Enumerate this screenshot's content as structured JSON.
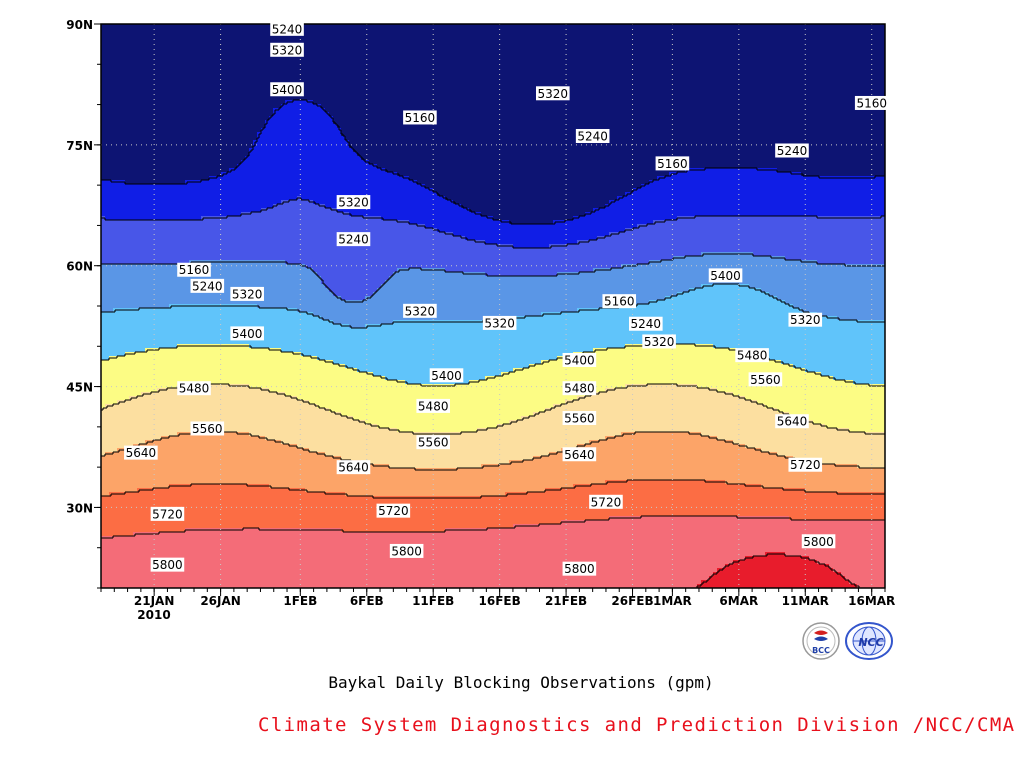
{
  "chart_data": {
    "type": "contour",
    "title": "Baykal Daily Blocking Observations (gpm)",
    "x_axis": {
      "ticks": [
        "21JAN",
        "26JAN",
        "1FEB",
        "6FEB",
        "11FEB",
        "16FEB",
        "21FEB",
        "26FEB",
        "1MAR",
        "6MAR",
        "11MAR",
        "16MAR"
      ],
      "year_label": "2010",
      "range": [
        "2010-01-17",
        "2010-03-17"
      ]
    },
    "y_axis": {
      "ticks": [
        "30N",
        "45N",
        "60N",
        "75N",
        "90N"
      ],
      "tick_values": [
        30,
        45,
        60,
        75,
        90
      ],
      "range": [
        20,
        90
      ]
    },
    "contour_levels": [
      5160,
      5240,
      5320,
      5400,
      5480,
      5560,
      5640,
      5720,
      5800,
      5880
    ],
    "fill_colors": [
      "#0d1473",
      "#101ee6",
      "#4856e8",
      "#5a96e6",
      "#60c4fa",
      "#fcfc84",
      "#fcdfa0",
      "#fca468",
      "#fc6d44",
      "#f46c78",
      "#e81c2c"
    ],
    "contour_labels": [
      {
        "text": "5240",
        "x": "2010-01-31",
        "lat": 89.4
      },
      {
        "text": "5320",
        "x": "2010-01-31",
        "lat": 86.8
      },
      {
        "text": "5400",
        "x": "2010-01-31",
        "lat": 81.9
      },
      {
        "text": "5320",
        "x": "2010-02-05",
        "lat": 67.9
      },
      {
        "text": "5240",
        "x": "2010-02-05",
        "lat": 63.3
      },
      {
        "text": "5160",
        "x": "2010-02-10",
        "lat": 78.4
      },
      {
        "text": "5320",
        "x": "2010-02-20",
        "lat": 81.4
      },
      {
        "text": "5240",
        "x": "2010-02-23",
        "lat": 76.1
      },
      {
        "text": "5160",
        "x": "2010-02-29",
        "lat": 72.7
      },
      {
        "text": "5240",
        "x": "2010-03-10",
        "lat": 74.3
      },
      {
        "text": "5160",
        "x": "2010-03-16",
        "lat": 80.2
      },
      {
        "text": "5160",
        "x": "2010-01-24",
        "lat": 59.5
      },
      {
        "text": "5240",
        "x": "2010-01-25",
        "lat": 57.5
      },
      {
        "text": "5320",
        "x": "2010-01-28",
        "lat": 56.5
      },
      {
        "text": "5400",
        "x": "2010-01-28",
        "lat": 51.6
      },
      {
        "text": "5320",
        "x": "2010-02-10",
        "lat": 54.4
      },
      {
        "text": "5320",
        "x": "2010-02-16",
        "lat": 52.9
      },
      {
        "text": "5160",
        "x": "2010-02-25",
        "lat": 55.6
      },
      {
        "text": "5240",
        "x": "2010-02-27",
        "lat": 52.8
      },
      {
        "text": "5320",
        "x": "2010-02-28",
        "lat": 50.6
      },
      {
        "text": "5400",
        "x": "2010-03-05",
        "lat": 58.8
      },
      {
        "text": "5320",
        "x": "2010-03-11",
        "lat": 53.3
      },
      {
        "text": "5480",
        "x": "2010-03-07",
        "lat": 48.9
      },
      {
        "text": "5560",
        "x": "2010-03-08",
        "lat": 45.9
      },
      {
        "text": "5400",
        "x": "2010-02-12",
        "lat": 46.4
      },
      {
        "text": "5400",
        "x": "2010-02-22",
        "lat": 48.3
      },
      {
        "text": "5480",
        "x": "2010-01-24",
        "lat": 44.8
      },
      {
        "text": "5480",
        "x": "2010-02-11",
        "lat": 42.6
      },
      {
        "text": "5480",
        "x": "2010-02-22",
        "lat": 44.8
      },
      {
        "text": "5560",
        "x": "2010-01-25",
        "lat": 39.8
      },
      {
        "text": "5560",
        "x": "2010-02-11",
        "lat": 38.1
      },
      {
        "text": "5560",
        "x": "2010-02-22",
        "lat": 41.1
      },
      {
        "text": "5640",
        "x": "2010-03-10",
        "lat": 40.7
      },
      {
        "text": "5640",
        "x": "2010-01-20",
        "lat": 36.8
      },
      {
        "text": "5640",
        "x": "2010-02-05",
        "lat": 35.0
      },
      {
        "text": "5640",
        "x": "2010-02-22",
        "lat": 36.6
      },
      {
        "text": "5720",
        "x": "2010-03-11",
        "lat": 35.3
      },
      {
        "text": "5720",
        "x": "2010-01-22",
        "lat": 29.2
      },
      {
        "text": "5720",
        "x": "2010-02-08",
        "lat": 29.6
      },
      {
        "text": "5720",
        "x": "2010-02-24",
        "lat": 30.7
      },
      {
        "text": "5800",
        "x": "2010-03-12",
        "lat": 25.8
      },
      {
        "text": "5800",
        "x": "2010-01-22",
        "lat": 22.9
      },
      {
        "text": "5800",
        "x": "2010-02-09",
        "lat": 24.6
      },
      {
        "text": "5800",
        "x": "2010-02-22",
        "lat": 22.4
      }
    ]
  },
  "footer": {
    "credit": "Climate System Diagnostics and Prediction Division /NCC/CMA",
    "logos": [
      {
        "icon": "bcc-logo-icon",
        "text": "BCC"
      },
      {
        "icon": "ncc-logo-icon",
        "text": "NCC"
      }
    ]
  }
}
